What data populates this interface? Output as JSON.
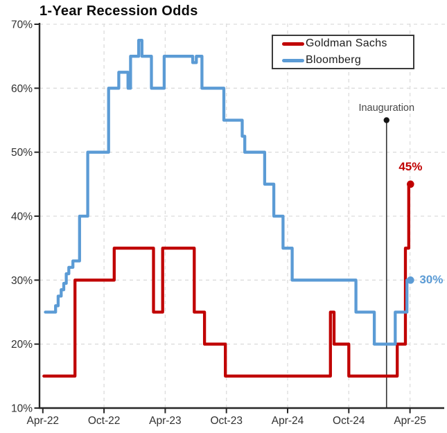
{
  "title": "1-Year Recession Odds",
  "legend": {
    "items": [
      {
        "label": "Goldman Sachs",
        "color": "#C00000"
      },
      {
        "label": "Bloomberg",
        "color": "#5B9BD5"
      }
    ]
  },
  "annotations": {
    "inauguration": {
      "label": "Inauguration",
      "months_after_apr22": 33.7,
      "marker_top_value": 55
    },
    "goldman_end_label": "45%",
    "bloomberg_end_label": "30%"
  },
  "chart_data": {
    "type": "line",
    "title": "1-Year Recession Odds",
    "x_unit": "months_since_2022-04",
    "x_axis": {
      "tick_labels": [
        "Apr-22",
        "Oct-22",
        "Apr-23",
        "Oct-23",
        "Apr-24",
        "Oct-24",
        "Apr-25"
      ],
      "tick_months": [
        0,
        6,
        12,
        18,
        24,
        30,
        36
      ]
    },
    "y_axis": {
      "tick_labels": [
        "10%",
        "20%",
        "30%",
        "40%",
        "50%",
        "60%",
        "70%"
      ],
      "tick_values": [
        10,
        20,
        30,
        40,
        50,
        60,
        70
      ],
      "min": 10,
      "max": 70,
      "unit": "%"
    },
    "grid": {
      "horizontal": true,
      "vertical": true,
      "style": "dashed"
    },
    "legend_position": "top-right",
    "series": [
      {
        "name": "Goldman Sachs",
        "color": "#C00000",
        "draw": "step-after",
        "end_month": 36.05,
        "end_value": 45,
        "points": [
          [
            0.1,
            15
          ],
          [
            3.15,
            30
          ],
          [
            7.0,
            35
          ],
          [
            10.85,
            25
          ],
          [
            11.75,
            35
          ],
          [
            14.85,
            25
          ],
          [
            15.85,
            20
          ],
          [
            17.9,
            15
          ],
          [
            28.2,
            25
          ],
          [
            28.55,
            20
          ],
          [
            30.0,
            15
          ],
          [
            34.75,
            20
          ],
          [
            35.55,
            35
          ],
          [
            35.88,
            45
          ]
        ]
      },
      {
        "name": "Bloomberg",
        "color": "#5B9BD5",
        "draw": "step-after",
        "end_month": 36.05,
        "end_value": 30,
        "points": [
          [
            0.25,
            25
          ],
          [
            1.25,
            26
          ],
          [
            1.5,
            27.5
          ],
          [
            1.8,
            28.5
          ],
          [
            2.05,
            29.5
          ],
          [
            2.3,
            31
          ],
          [
            2.55,
            32
          ],
          [
            2.95,
            33
          ],
          [
            3.6,
            40
          ],
          [
            4.4,
            50
          ],
          [
            6.45,
            60
          ],
          [
            7.45,
            62.5
          ],
          [
            8.35,
            60
          ],
          [
            8.6,
            65
          ],
          [
            9.4,
            67.5
          ],
          [
            9.72,
            65
          ],
          [
            10.65,
            60
          ],
          [
            11.9,
            65
          ],
          [
            14.7,
            64
          ],
          [
            15.05,
            65
          ],
          [
            15.6,
            60
          ],
          [
            17.75,
            55
          ],
          [
            19.55,
            52.5
          ],
          [
            19.8,
            50
          ],
          [
            21.75,
            45
          ],
          [
            22.65,
            40
          ],
          [
            23.55,
            35
          ],
          [
            24.45,
            30
          ],
          [
            30.7,
            25
          ],
          [
            32.5,
            20
          ],
          [
            34.55,
            25
          ],
          [
            35.7,
            30
          ]
        ]
      }
    ]
  }
}
